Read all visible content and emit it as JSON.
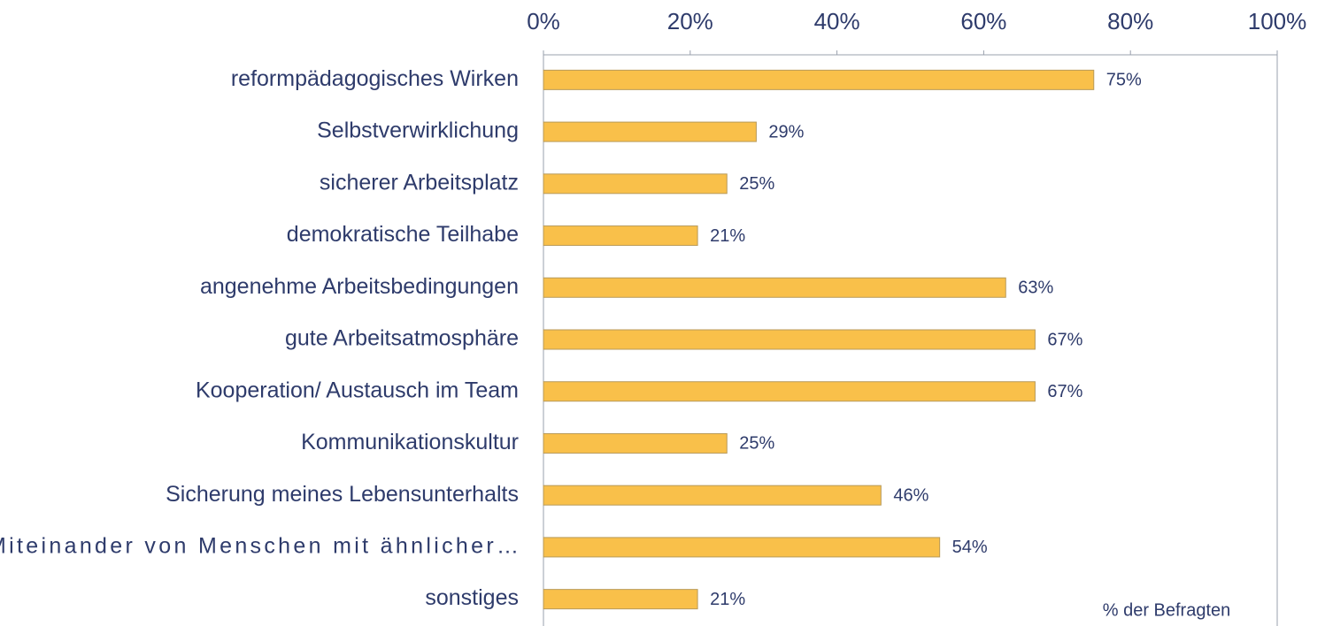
{
  "chart_data": {
    "type": "bar",
    "orientation": "horizontal",
    "categories": [
      "reformpädagogisches Wirken",
      "Selbstverwirklichung",
      "sicherer Arbeitsplatz",
      "demokratische Teilhabe",
      "angenehme Arbeitsbedingungen",
      "gute Arbeitsatmosphäre",
      "Kooperation/ Austausch im Team",
      "Kommunikationskultur",
      "Sicherung meines Lebensunterhalts",
      "Miteinander von Menschen mit ähnlicher…",
      "sonstiges"
    ],
    "values": [
      75,
      29,
      25,
      21,
      63,
      67,
      67,
      25,
      46,
      54,
      21
    ],
    "value_labels": [
      "75%",
      "29%",
      "25%",
      "21%",
      "63%",
      "67%",
      "67%",
      "25%",
      "46%",
      "54%",
      "21%"
    ],
    "color": "#f9c04a",
    "xlim": [
      0,
      100
    ],
    "xticks": [
      {
        "value": 0,
        "label": "0%"
      },
      {
        "value": 20,
        "label": "20%"
      },
      {
        "value": 40,
        "label": "40%"
      },
      {
        "value": 60,
        "label": "60%"
      },
      {
        "value": 80,
        "label": "80%"
      },
      {
        "value": 100,
        "label": "100%"
      }
    ],
    "annotation": "% der Befragten"
  }
}
